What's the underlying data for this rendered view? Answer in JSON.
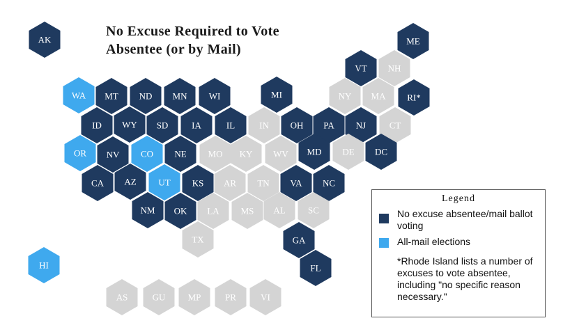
{
  "title": {
    "line1": "No Excuse Required to Vote",
    "line2": "Absentee (or by Mail)"
  },
  "colors": {
    "no_excuse": "#1f3a5f",
    "all_mail": "#3fa9ee",
    "other": "#d4d4d4"
  },
  "states": [
    {
      "label": "AK",
      "category": "no_excuse"
    },
    {
      "label": "ME",
      "category": "no_excuse"
    },
    {
      "label": "VT",
      "category": "no_excuse"
    },
    {
      "label": "NH",
      "category": "other"
    },
    {
      "label": "WA",
      "category": "all_mail"
    },
    {
      "label": "MT",
      "category": "no_excuse"
    },
    {
      "label": "ND",
      "category": "no_excuse"
    },
    {
      "label": "MN",
      "category": "no_excuse"
    },
    {
      "label": "WI",
      "category": "no_excuse"
    },
    {
      "label": "MI",
      "category": "no_excuse"
    },
    {
      "label": "NY",
      "category": "other"
    },
    {
      "label": "MA",
      "category": "other"
    },
    {
      "label": "RI*",
      "category": "no_excuse"
    },
    {
      "label": "ID",
      "category": "no_excuse"
    },
    {
      "label": "WY",
      "category": "no_excuse"
    },
    {
      "label": "SD",
      "category": "no_excuse"
    },
    {
      "label": "IA",
      "category": "no_excuse"
    },
    {
      "label": "IL",
      "category": "no_excuse"
    },
    {
      "label": "IN",
      "category": "other"
    },
    {
      "label": "OH",
      "category": "no_excuse"
    },
    {
      "label": "PA",
      "category": "no_excuse"
    },
    {
      "label": "NJ",
      "category": "no_excuse"
    },
    {
      "label": "CT",
      "category": "other"
    },
    {
      "label": "OR",
      "category": "all_mail"
    },
    {
      "label": "NV",
      "category": "no_excuse"
    },
    {
      "label": "CO",
      "category": "all_mail"
    },
    {
      "label": "NE",
      "category": "no_excuse"
    },
    {
      "label": "MO",
      "category": "other"
    },
    {
      "label": "KY",
      "category": "other"
    },
    {
      "label": "WV",
      "category": "other"
    },
    {
      "label": "MD",
      "category": "no_excuse"
    },
    {
      "label": "DE",
      "category": "other"
    },
    {
      "label": "DC",
      "category": "no_excuse"
    },
    {
      "label": "CA",
      "category": "no_excuse"
    },
    {
      "label": "AZ",
      "category": "no_excuse"
    },
    {
      "label": "UT",
      "category": "all_mail"
    },
    {
      "label": "KS",
      "category": "no_excuse"
    },
    {
      "label": "AR",
      "category": "other"
    },
    {
      "label": "TN",
      "category": "other"
    },
    {
      "label": "VA",
      "category": "no_excuse"
    },
    {
      "label": "NC",
      "category": "no_excuse"
    },
    {
      "label": "NM",
      "category": "no_excuse"
    },
    {
      "label": "OK",
      "category": "no_excuse"
    },
    {
      "label": "LA",
      "category": "other"
    },
    {
      "label": "MS",
      "category": "other"
    },
    {
      "label": "AL",
      "category": "other"
    },
    {
      "label": "SC",
      "category": "other"
    },
    {
      "label": "TX",
      "category": "other"
    },
    {
      "label": "GA",
      "category": "no_excuse"
    },
    {
      "label": "HI",
      "category": "all_mail"
    },
    {
      "label": "FL",
      "category": "no_excuse"
    },
    {
      "label": "AS",
      "category": "other"
    },
    {
      "label": "GU",
      "category": "other"
    },
    {
      "label": "MP",
      "category": "other"
    },
    {
      "label": "PR",
      "category": "other"
    },
    {
      "label": "VI",
      "category": "other"
    }
  ],
  "legend": {
    "title": "Legend",
    "no_excuse_label": "No excuse absentee/mail ballot voting",
    "all_mail_label": "All-mail elections",
    "note": "*Rhode Island lists a number of excuses to vote absentee, including \"no specific reason necessary.\""
  }
}
